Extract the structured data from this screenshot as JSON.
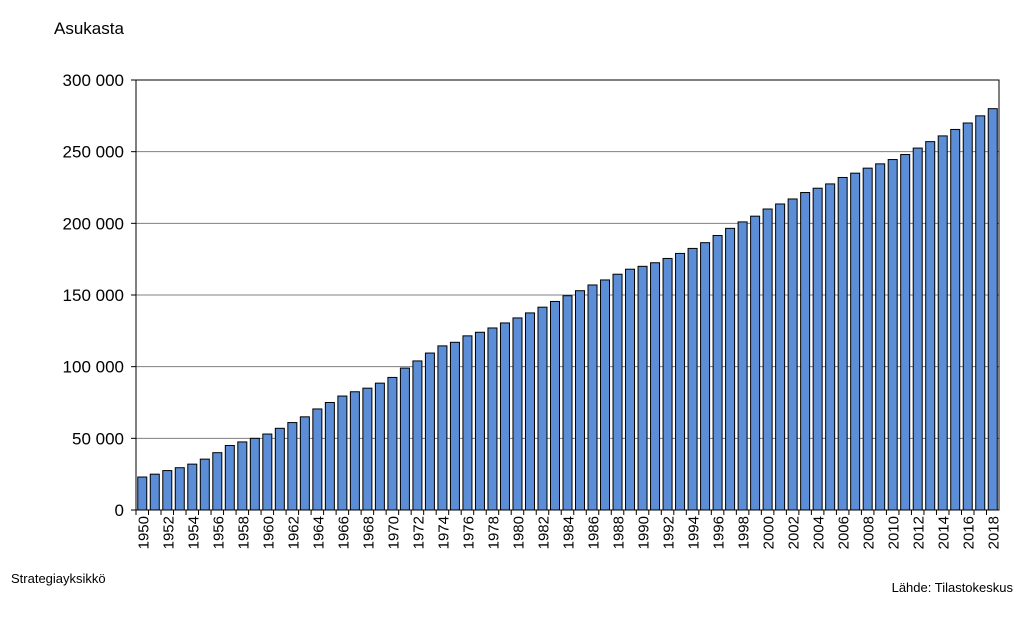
{
  "chart_data": {
    "type": "bar",
    "ylabel": "Asukasta",
    "ylim": [
      0,
      300000
    ],
    "yticks": [
      0,
      50000,
      100000,
      150000,
      200000,
      250000,
      300000
    ],
    "ytick_labels": [
      "0",
      "50 000",
      "100 000",
      "150 000",
      "200 000",
      "250 000",
      "300 000"
    ],
    "grid": true,
    "bar_color": "#5b8ed6",
    "categories": [
      "1950",
      "1951",
      "1952",
      "1953",
      "1954",
      "1955",
      "1956",
      "1957",
      "1958",
      "1959",
      "1960",
      "1961",
      "1962",
      "1963",
      "1964",
      "1965",
      "1966",
      "1967",
      "1968",
      "1969",
      "1970",
      "1971",
      "1972",
      "1973",
      "1974",
      "1975",
      "1976",
      "1977",
      "1978",
      "1979",
      "1980",
      "1981",
      "1982",
      "1983",
      "1984",
      "1985",
      "1986",
      "1987",
      "1988",
      "1989",
      "1990",
      "1991",
      "1992",
      "1993",
      "1994",
      "1995",
      "1996",
      "1997",
      "1998",
      "1999",
      "2000",
      "2001",
      "2002",
      "2003",
      "2004",
      "2005",
      "2006",
      "2007",
      "2008",
      "2009",
      "2010",
      "2011",
      "2012",
      "2013",
      "2014",
      "2015",
      "2016",
      "2017",
      "2018"
    ],
    "values": [
      23000,
      25000,
      27500,
      29500,
      32000,
      35500,
      40000,
      45000,
      47500,
      50000,
      53000,
      57000,
      61000,
      65000,
      70500,
      75000,
      79500,
      82500,
      85000,
      88500,
      92500,
      99000,
      104000,
      109500,
      114500,
      117000,
      121500,
      124000,
      127000,
      130500,
      134000,
      137500,
      141500,
      145500,
      149500,
      153000,
      157000,
      160500,
      164500,
      168000,
      170000,
      172500,
      175500,
      179000,
      182500,
      186500,
      191500,
      196500,
      201000,
      205000,
      210000,
      213500,
      217000,
      221500,
      224500,
      227500,
      232000,
      235000,
      238500,
      241500,
      244500,
      248000,
      252500,
      257000,
      261000,
      265500,
      270000,
      275000,
      280000
    ]
  },
  "footer": {
    "left": "Strategiayksikkö",
    "right": "Lähde: Tilastokeskus"
  }
}
